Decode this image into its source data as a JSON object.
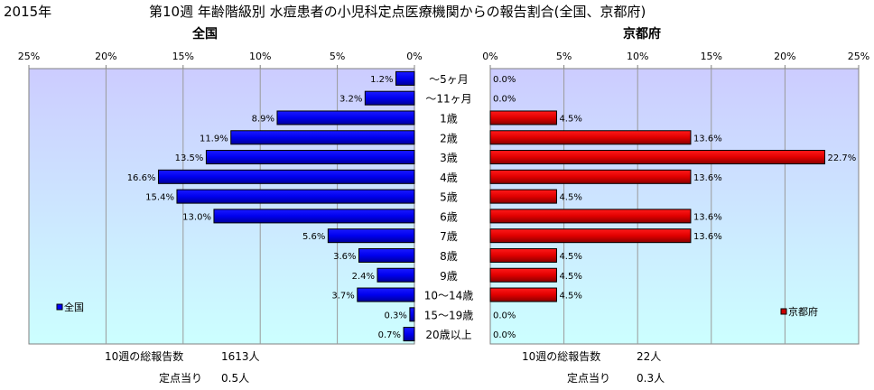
{
  "header": {
    "year": "2015年",
    "title": "第10週 年齢階級別 水痘患者の小児科定点医療機関からの報告割合(全国、京都府)"
  },
  "chart_data": [
    {
      "type": "bar",
      "orientation": "horizontal",
      "subtitle": "全国",
      "categories": [
        "～5ヶ月",
        "～11ヶ月",
        "1歳",
        "2歳",
        "3歳",
        "4歳",
        "5歳",
        "6歳",
        "7歳",
        "8歳",
        "9歳",
        "10～14歳",
        "15～19歳",
        "20歳以上"
      ],
      "series": [
        {
          "name": "全国",
          "values": [
            1.2,
            3.2,
            8.9,
            11.9,
            13.5,
            16.6,
            15.4,
            13.0,
            5.6,
            3.6,
            2.4,
            3.7,
            0.3,
            0.7
          ],
          "value_labels": [
            "1.2%",
            "3.2%",
            "8.9%",
            "11.9%",
            "13.5%",
            "16.6%",
            "15.4%",
            "13.0%",
            "5.6%",
            "3.6%",
            "2.4%",
            "3.7%",
            "0.3%",
            "0.7%"
          ],
          "color": "#0000ff"
        }
      ],
      "xlim": [
        0,
        25
      ],
      "x_reversed": true,
      "ticks": [
        0,
        5,
        10,
        15,
        20,
        25
      ],
      "tick_labels": [
        "0%",
        "5%",
        "10%",
        "15%",
        "20%",
        "25%"
      ],
      "grid": true,
      "legend": "bottom-left",
      "footer": {
        "total_label": "10週の総報告数",
        "total_value": "1613人",
        "per_label": "定点当り",
        "per_value": "0.5人"
      }
    },
    {
      "type": "bar",
      "orientation": "horizontal",
      "subtitle": "京都府",
      "categories": [
        "～5ヶ月",
        "～11ヶ月",
        "1歳",
        "2歳",
        "3歳",
        "4歳",
        "5歳",
        "6歳",
        "7歳",
        "8歳",
        "9歳",
        "10～14歳",
        "15～19歳",
        "20歳以上"
      ],
      "series": [
        {
          "name": "京都府",
          "values": [
            0.0,
            0.0,
            4.5,
            13.6,
            22.7,
            13.6,
            4.5,
            13.6,
            13.6,
            4.5,
            4.5,
            4.5,
            0.0,
            0.0
          ],
          "value_labels": [
            "0.0%",
            "0.0%",
            "4.5%",
            "13.6%",
            "22.7%",
            "13.6%",
            "4.5%",
            "13.6%",
            "13.6%",
            "4.5%",
            "4.5%",
            "4.5%",
            "0.0%",
            "0.0%"
          ],
          "color": "#ff0000"
        }
      ],
      "xlim": [
        0,
        25
      ],
      "x_reversed": false,
      "ticks": [
        0,
        5,
        10,
        15,
        20,
        25
      ],
      "tick_labels": [
        "0%",
        "5%",
        "10%",
        "15%",
        "20%",
        "25%"
      ],
      "grid": true,
      "legend": "bottom-right",
      "footer": {
        "total_label": "10週の総報告数",
        "total_value": "22人",
        "per_label": "定点当り",
        "per_value": "0.3人"
      }
    }
  ]
}
